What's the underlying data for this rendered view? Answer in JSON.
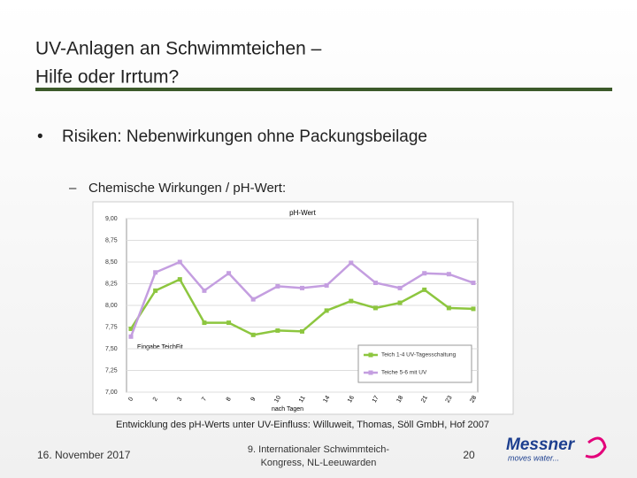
{
  "title_lines": [
    "UV-Anlagen an Schwimmteichen –",
    "Hilfe oder Irrtum?"
  ],
  "bullet": "Risiken: Nebenwirkungen ohne Packungsbeilage",
  "sub_bullet": "Chemische Wirkungen / pH-Wert:",
  "chart_data": {
    "type": "line",
    "title": "pH-Wert",
    "x_label": "nach Tagen",
    "annotation": "Eingabe TeichFit",
    "categories": [
      "0",
      "2",
      "3",
      "7",
      "8",
      "9",
      "10",
      "11",
      "14",
      "16",
      "17",
      "18",
      "21",
      "23",
      "28"
    ],
    "series": [
      {
        "name": "Teich 1-4 UV-Tagesschaltung",
        "color": "#8dc63f",
        "values": [
          7.73,
          8.17,
          8.3,
          7.8,
          7.8,
          7.66,
          7.71,
          7.7,
          7.94,
          8.05,
          7.97,
          8.03,
          8.18,
          7.97,
          7.96
        ]
      },
      {
        "name": "Teiche 5-6 mit UV",
        "color": "#c49ee0",
        "values": [
          7.64,
          8.38,
          8.5,
          8.17,
          8.37,
          8.07,
          8.22,
          8.2,
          8.23,
          8.49,
          8.26,
          8.2,
          8.37,
          8.36,
          8.26
        ]
      }
    ],
    "ylim": [
      7,
      9
    ],
    "yticks": [
      {
        "value": 7,
        "label": "7,00"
      },
      {
        "value": 7.25,
        "label": "7,25"
      },
      {
        "value": 7.5,
        "label": "7,50"
      },
      {
        "value": 7.75,
        "label": "7,75"
      },
      {
        "value": 8,
        "label": "8,00"
      },
      {
        "value": 8.25,
        "label": "8,25"
      },
      {
        "value": 8.5,
        "label": "8,50"
      },
      {
        "value": 8.75,
        "label": "8,75"
      },
      {
        "value": 9,
        "label": "9,00"
      }
    ],
    "grid": true,
    "legend": "lower right"
  },
  "caption": "Entwicklung des pH-Werts unter UV-Einfluss: Willuweit, Thomas, Söll GmbH, Hof 2007",
  "footer": {
    "date": "16. November 2017",
    "event": [
      "9. Internationaler Schwimmteich-",
      "Kongress, NL-Leeuwarden"
    ],
    "page": "20"
  },
  "logo": {
    "name": "Messner",
    "tagline": "moves water..."
  }
}
